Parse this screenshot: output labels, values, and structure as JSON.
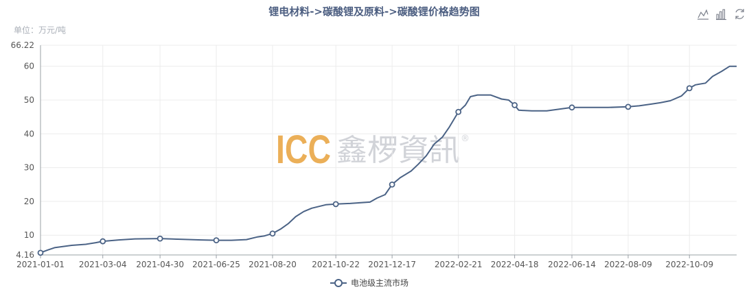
{
  "chart_data": {
    "type": "line",
    "title": "锂电材料->碳酸锂及原料->碳酸锂价格趋势图",
    "unit_label": "单位：万元/吨",
    "ylim": [
      4.16,
      66.22
    ],
    "y_ticks": [
      "66.22",
      "60",
      "50",
      "40",
      "30",
      "20",
      "10",
      "4.16"
    ],
    "y_tick_values": [
      66.22,
      60,
      50,
      40,
      30,
      20,
      10,
      4.16
    ],
    "x_ticks": [
      "2021-01-01",
      "2021-03-04",
      "2021-04-30",
      "2021-06-25",
      "2021-08-20",
      "2021-10-22",
      "2021-12-17",
      "2022-02-21",
      "2022-04-18",
      "2022-06-14",
      "2022-08-09",
      "2022-10-09"
    ],
    "x_range": [
      "2021-01-01",
      "2022-11-25"
    ],
    "grid": true,
    "legend_position": "bottom-center",
    "series": [
      {
        "name": "电池级主流市场",
        "color": "#4a6285",
        "x": [
          "2021-01-01",
          "2021-01-08",
          "2021-01-15",
          "2021-01-22",
          "2021-02-01",
          "2021-02-15",
          "2021-02-25",
          "2021-03-04",
          "2021-03-20",
          "2021-04-05",
          "2021-04-30",
          "2021-05-20",
          "2021-06-10",
          "2021-06-25",
          "2021-07-10",
          "2021-07-25",
          "2021-08-05",
          "2021-08-12",
          "2021-08-20",
          "2021-08-28",
          "2021-09-05",
          "2021-09-12",
          "2021-09-20",
          "2021-09-28",
          "2021-10-05",
          "2021-10-12",
          "2021-10-22",
          "2021-11-05",
          "2021-11-15",
          "2021-11-25",
          "2021-12-02",
          "2021-12-10",
          "2021-12-17",
          "2021-12-25",
          "2022-01-05",
          "2022-01-12",
          "2022-01-20",
          "2022-01-28",
          "2022-02-05",
          "2022-02-12",
          "2022-02-21",
          "2022-02-28",
          "2022-03-05",
          "2022-03-12",
          "2022-03-20",
          "2022-03-25",
          "2022-04-05",
          "2022-04-12",
          "2022-04-18",
          "2022-04-22",
          "2022-05-05",
          "2022-05-20",
          "2022-05-30",
          "2022-06-14",
          "2022-07-01",
          "2022-07-20",
          "2022-08-09",
          "2022-08-20",
          "2022-09-01",
          "2022-09-10",
          "2022-09-20",
          "2022-10-01",
          "2022-10-09",
          "2022-10-15",
          "2022-10-25",
          "2022-11-01",
          "2022-11-10",
          "2022-11-18",
          "2022-11-25"
        ],
        "values": [
          4.8,
          5.6,
          6.3,
          6.6,
          7.0,
          7.3,
          7.8,
          8.2,
          8.6,
          8.9,
          9.0,
          8.8,
          8.6,
          8.5,
          8.5,
          8.7,
          9.5,
          9.8,
          10.5,
          11.8,
          13.5,
          15.5,
          17.0,
          18.0,
          18.5,
          19.0,
          19.2,
          19.4,
          19.6,
          19.8,
          21.0,
          22.0,
          25.0,
          27.0,
          29.0,
          31.0,
          33.5,
          37.0,
          39.0,
          42.0,
          46.5,
          48.5,
          51.0,
          51.5,
          51.5,
          51.5,
          50.3,
          50.0,
          48.5,
          47.0,
          46.8,
          46.8,
          47.2,
          47.8,
          47.8,
          47.8,
          48.0,
          48.3,
          48.8,
          49.2,
          49.8,
          51.2,
          53.5,
          54.5,
          55.0,
          57.0,
          58.5,
          60.0,
          60.0
        ],
        "markers": [
          "2021-01-01",
          "2021-03-04",
          "2021-04-30",
          "2021-06-25",
          "2021-08-20",
          "2021-10-22",
          "2021-12-17",
          "2022-02-21",
          "2022-04-18",
          "2022-06-14",
          "2022-08-09",
          "2022-10-09"
        ]
      }
    ],
    "watermark": {
      "brand": "ICC",
      "chinese": "鑫椤資訊",
      "registered": "®",
      "color": "#e8a23c"
    },
    "toolbox_icons": [
      "line-chart-icon",
      "bar-chart-icon",
      "restore-icon"
    ]
  }
}
